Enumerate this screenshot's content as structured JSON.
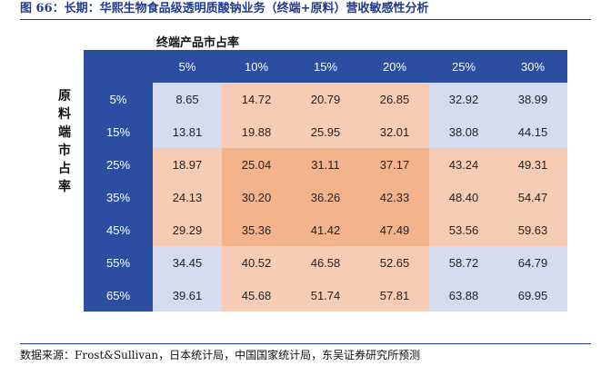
{
  "title": "图 66：长期：华熙生物食品级透明质酸钠业务（终端+原料）营收敏感性分析",
  "column_axis_label": "终端产品市占率",
  "row_axis_label": [
    "原",
    "料",
    "端",
    "市",
    "占",
    "率"
  ],
  "columns": [
    "5%",
    "10%",
    "15%",
    "20%",
    "25%",
    "30%"
  ],
  "rows": [
    {
      "label": "5%",
      "values": [
        "8.65",
        "14.72",
        "20.79",
        "26.85",
        "32.92",
        "38.99"
      ]
    },
    {
      "label": "15%",
      "values": [
        "13.81",
        "19.88",
        "25.95",
        "32.01",
        "38.08",
        "44.15"
      ]
    },
    {
      "label": "25%",
      "values": [
        "18.97",
        "25.04",
        "31.11",
        "37.17",
        "43.24",
        "49.31"
      ]
    },
    {
      "label": "35%",
      "values": [
        "24.13",
        "30.20",
        "36.26",
        "42.33",
        "48.40",
        "54.47"
      ]
    },
    {
      "label": "45%",
      "values": [
        "29.29",
        "35.36",
        "41.42",
        "47.49",
        "53.56",
        "59.63"
      ]
    },
    {
      "label": "55%",
      "values": [
        "34.45",
        "40.52",
        "46.58",
        "52.65",
        "58.72",
        "64.79"
      ]
    },
    {
      "label": "65%",
      "values": [
        "39.61",
        "45.68",
        "51.74",
        "57.81",
        "63.88",
        "69.95"
      ]
    }
  ],
  "cell_colors": {
    "light_blue": "#d6dcef",
    "light_orange": "#f7ccb4",
    "orange": "#f2b38d",
    "header_blue": "#2c4ea0"
  },
  "cell_color_map": [
    [
      "light_blue",
      "light_orange",
      "light_orange",
      "light_orange",
      "light_blue",
      "light_blue"
    ],
    [
      "light_blue",
      "light_orange",
      "light_orange",
      "light_orange",
      "light_blue",
      "light_blue"
    ],
    [
      "light_orange",
      "orange",
      "orange",
      "orange",
      "light_orange",
      "light_orange"
    ],
    [
      "light_orange",
      "orange",
      "orange",
      "orange",
      "light_orange",
      "light_orange"
    ],
    [
      "light_orange",
      "orange",
      "orange",
      "orange",
      "light_orange",
      "light_orange"
    ],
    [
      "light_blue",
      "light_orange",
      "light_orange",
      "light_orange",
      "light_blue",
      "light_blue"
    ],
    [
      "light_blue",
      "light_orange",
      "light_orange",
      "light_orange",
      "light_blue",
      "light_blue"
    ]
  ],
  "source": "数据来源：Frost&Sullivan，日本统计局，中国国家统计局，东吴证券研究所预测"
}
